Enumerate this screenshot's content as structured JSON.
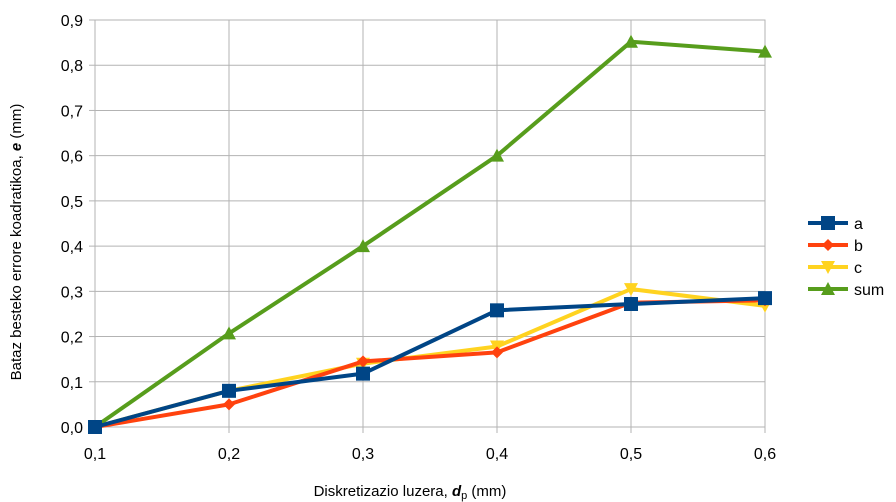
{
  "chart_data": {
    "type": "line",
    "x": [
      0.1,
      0.2,
      0.3,
      0.4,
      0.5,
      0.6
    ],
    "x_tick_labels": [
      "0,1",
      "0,2",
      "0,3",
      "0,4",
      "0,5",
      "0,6"
    ],
    "y_tick_labels": [
      "0,0",
      "0,1",
      "0,2",
      "0,3",
      "0,4",
      "0,5",
      "0,6",
      "0,7",
      "0,8",
      "0,9"
    ],
    "xlim": [
      0.1,
      0.6
    ],
    "ylim": [
      0,
      0.9
    ],
    "grid": true,
    "legend_position": "right",
    "xlabel": {
      "prefix": "Diskretizazio luzera, ",
      "var": "d",
      "sub": "p",
      "suffix": " (mm)"
    },
    "ylabel": {
      "prefix": "Bataz besteko errore koadratikoa, ",
      "var": "e",
      "suffix": " (mm)"
    },
    "series": [
      {
        "name": "a",
        "color": "#004586",
        "marker": "square",
        "values": [
          0.0,
          0.08,
          0.118,
          0.258,
          0.272,
          0.285
        ]
      },
      {
        "name": "b",
        "color": "#ff420e",
        "marker": "diamond",
        "values": [
          0.0,
          0.05,
          0.145,
          0.165,
          0.275,
          0.28
        ]
      },
      {
        "name": "c",
        "color": "#ffd320",
        "marker": "triangle-down",
        "values": [
          0.0,
          0.08,
          0.14,
          0.178,
          0.305,
          0.268
        ]
      },
      {
        "name": "sum",
        "color": "#579d1c",
        "marker": "triangle-up",
        "values": [
          0.0,
          0.207,
          0.4,
          0.6,
          0.852,
          0.83
        ]
      }
    ]
  }
}
